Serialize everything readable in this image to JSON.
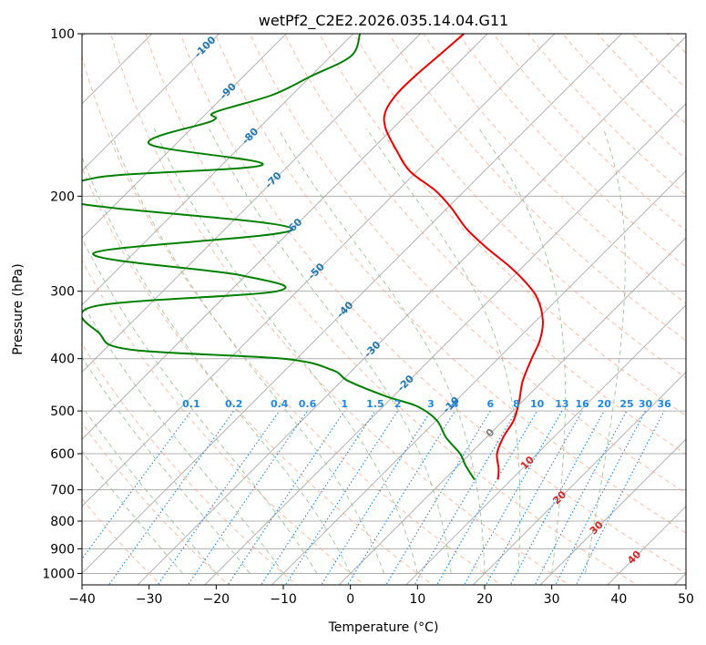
{
  "chart_data": {
    "type": "skew-t",
    "title": "wetPf2_C2E2.2026.035.14.04.G11",
    "xlabel": "Temperature (°C)",
    "ylabel": "Pressure (hPa)",
    "xlim": [
      -40,
      50
    ],
    "ylim": [
      1050,
      100
    ],
    "y_scale": "log",
    "x_ticks": [
      "−40",
      "−30",
      "−20",
      "−10",
      "0",
      "10",
      "20",
      "30",
      "40",
      "50"
    ],
    "y_ticks": [
      "100",
      "200",
      "300",
      "400",
      "500",
      "600",
      "700",
      "800",
      "900",
      "1000"
    ],
    "grid": true,
    "series": [
      {
        "role": "temperature",
        "color": "#ee0000",
        "pressure": [
          670,
          640,
          600,
          560,
          520,
          480,
          440,
          400,
          370,
          340,
          310,
          290,
          270,
          250,
          230,
          210,
          195,
          180,
          165,
          150,
          140,
          130,
          120,
          110,
          100
        ],
        "temp": [
          8.0,
          6.5,
          4.0,
          2.5,
          1.5,
          -0.5,
          -3.0,
          -5.0,
          -6.5,
          -9.0,
          -13.0,
          -17.0,
          -22.0,
          -28.0,
          -34.0,
          -39.5,
          -44.5,
          -51.0,
          -56.0,
          -61.0,
          -63.5,
          -64.5,
          -64.5,
          -64.0,
          -63.5
        ]
      },
      {
        "role": "dewpoint",
        "color": "#008000",
        "pressure": [
          670,
          630,
          600,
          560,
          520,
          490,
          470,
          440,
          420,
          400,
          385,
          360,
          320,
          300,
          280,
          255,
          230,
          205,
          185,
          175,
          160,
          145,
          140,
          130,
          120,
          110,
          100
        ],
        "temp": [
          4.5,
          1.0,
          -1.5,
          -6.0,
          -10.0,
          -15.0,
          -21.0,
          -29.0,
          -33.0,
          -42.0,
          -66.0,
          -73.0,
          -78.0,
          -53.0,
          -61.0,
          -86.0,
          -60.0,
          -97.0,
          -97.0,
          -74.0,
          -94.0,
          -88.0,
          -89.0,
          -83.0,
          -80.0,
          -77.0,
          -79.0
        ]
      }
    ],
    "dry_adiabats": [
      -30,
      -20,
      -10,
      0,
      10,
      20,
      30,
      40,
      50,
      60,
      70,
      80,
      90,
      100,
      110,
      120,
      130,
      140,
      150,
      160,
      170,
      180,
      190,
      200
    ],
    "moist_adiabats": [
      -25,
      -20,
      -15,
      -10,
      -5,
      0,
      5,
      10,
      15,
      20,
      25,
      30,
      35
    ],
    "mixing_ratio_lines": [
      0.1,
      0.2,
      0.4,
      0.6,
      1,
      1.5,
      2,
      3,
      4,
      6,
      8,
      10,
      13,
      16,
      20,
      25,
      30,
      36
    ],
    "mixing_ratio_labels": [
      "0.1",
      "0.2",
      "0.4",
      "0.6",
      "1",
      "1.5",
      "2",
      "3",
      "4",
      "6",
      "8",
      "10",
      "13",
      "16",
      "20",
      "25",
      "30",
      "36"
    ],
    "isotherm_labels": [
      {
        "text": "-100",
        "temp": -100,
        "pressure": 106
      },
      {
        "text": "-90",
        "temp": -90,
        "pressure": 128
      },
      {
        "text": "-80",
        "temp": -80,
        "pressure": 155
      },
      {
        "text": "-70",
        "temp": -70,
        "pressure": 187
      },
      {
        "text": "-60",
        "temp": -60,
        "pressure": 228
      },
      {
        "text": "-50",
        "temp": -50,
        "pressure": 276
      },
      {
        "text": "-40",
        "temp": -40,
        "pressure": 325
      },
      {
        "text": "-30",
        "temp": -30,
        "pressure": 385
      },
      {
        "text": "-20",
        "temp": -20,
        "pressure": 445
      },
      {
        "text": "-10",
        "temp": -10,
        "pressure": 488
      },
      {
        "text": "0",
        "temp": 0,
        "pressure": 550
      },
      {
        "text": "10",
        "temp": 10,
        "pressure": 625
      },
      {
        "text": "20",
        "temp": 20,
        "pressure": 725
      },
      {
        "text": "30",
        "temp": 30,
        "pressure": 825
      },
      {
        "text": "40",
        "temp": 40,
        "pressure": 935
      }
    ],
    "colors": {
      "isotherm_label_cold": "#1f77b4",
      "isotherm_label_warm": "#d62728",
      "isotherm_label_zero": "#808080",
      "mixing_ratio": "#1e88e5",
      "dry_adiabat": "#ffa07a",
      "moist_adiabat": "#8fbc8f",
      "skewed_isotherm": "#808080"
    }
  }
}
